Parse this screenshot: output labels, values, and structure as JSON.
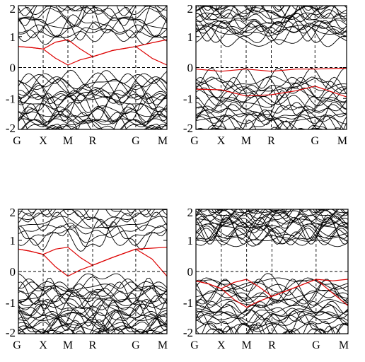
{
  "figure": {
    "panel_count": 4,
    "description_colors": {
      "band": "#000000",
      "highlight_band": "#dd0000",
      "frame": "#000000",
      "guide": "#000000"
    }
  },
  "chart_data": [
    {
      "type": "line",
      "panel": "top-left",
      "ylim": [
        -2,
        2
      ],
      "yticks": [
        "2",
        "1",
        "0",
        "-1",
        "-2"
      ],
      "kpoints": [
        "G",
        "X",
        "M",
        "R",
        "G",
        "M"
      ],
      "kpoint_positions": [
        0,
        0.5,
        1.0,
        1.5,
        2.37,
        3.0
      ],
      "zero_line": true,
      "highlight_series": [
        {
          "x": [
            0,
            0.25,
            0.5,
            0.75,
            1.0,
            1.25,
            1.5,
            1.9,
            2.37,
            2.7,
            3.0
          ],
          "y": [
            0.68,
            0.65,
            0.6,
            0.82,
            0.9,
            0.6,
            0.35,
            0.55,
            0.68,
            0.8,
            0.9
          ]
        },
        {
          "x": [
            0,
            0.25,
            0.5,
            0.75,
            1.0,
            1.25,
            1.5,
            1.9,
            2.37,
            2.7,
            3.0
          ],
          "y": [
            0.68,
            0.65,
            0.6,
            0.3,
            0.08,
            0.25,
            0.35,
            0.55,
            0.68,
            0.3,
            0.08
          ]
        }
      ],
      "band_seed": 11,
      "valence_bands": 26,
      "conduction_bands": 14
    },
    {
      "type": "line",
      "panel": "top-right",
      "ylim": [
        -2,
        2
      ],
      "yticks": [
        "2",
        "1",
        "0",
        "-1",
        "-2"
      ],
      "kpoints": [
        "G",
        "X",
        "M",
        "R",
        "G",
        "M"
      ],
      "kpoint_positions": [
        0,
        0.5,
        1.0,
        1.5,
        2.37,
        3.0
      ],
      "zero_line": true,
      "highlight_series": [
        {
          "x": [
            0,
            0.5,
            1.0,
            1.5,
            2.0,
            2.37,
            3.0
          ],
          "y": [
            -0.05,
            -0.12,
            -0.05,
            -0.12,
            -0.05,
            -0.05,
            -0.02
          ]
        },
        {
          "x": [
            0,
            0.5,
            1.0,
            1.5,
            2.0,
            2.37,
            3.0
          ],
          "y": [
            -0.7,
            -0.72,
            -0.92,
            -0.88,
            -0.75,
            -0.6,
            -0.95
          ]
        }
      ],
      "band_seed": 23,
      "valence_bands": 24,
      "conduction_bands": 22
    },
    {
      "type": "line",
      "panel": "bottom-left",
      "ylim": [
        -2,
        2
      ],
      "yticks": [
        "2",
        "1",
        "0",
        "-1",
        "-2"
      ],
      "kpoints": [
        "G",
        "X",
        "M",
        "R",
        "G",
        "M"
      ],
      "kpoint_positions": [
        0,
        0.5,
        1.0,
        1.5,
        2.37,
        3.0
      ],
      "zero_line": true,
      "highlight_series": [
        {
          "x": [
            0,
            0.25,
            0.5,
            0.75,
            1.0,
            1.25,
            1.5,
            1.9,
            2.37,
            2.7,
            3.0
          ],
          "y": [
            0.72,
            0.65,
            0.55,
            0.72,
            0.78,
            0.45,
            0.2,
            0.45,
            0.72,
            0.75,
            0.78
          ]
        },
        {
          "x": [
            0,
            0.25,
            0.5,
            0.75,
            1.0,
            1.25,
            1.5,
            1.9,
            2.37,
            2.7,
            3.0
          ],
          "y": [
            0.72,
            0.65,
            0.55,
            0.15,
            -0.15,
            0.05,
            0.2,
            0.45,
            0.72,
            0.4,
            -0.15
          ]
        }
      ],
      "band_seed": 37,
      "valence_bands": 30,
      "conduction_bands": 12
    },
    {
      "type": "line",
      "panel": "bottom-right",
      "ylim": [
        -2,
        2
      ],
      "yticks": [
        "2",
        "1",
        "0",
        "-1",
        "-2"
      ],
      "kpoints": [
        "G",
        "X",
        "M",
        "R",
        "G",
        "M"
      ],
      "kpoint_positions": [
        0,
        0.5,
        1.0,
        1.5,
        2.37,
        3.0
      ],
      "zero_line": true,
      "highlight_series": [
        {
          "x": [
            0,
            0.25,
            0.5,
            0.75,
            1.0,
            1.25,
            1.5,
            1.9,
            2.37,
            2.7,
            3.0
          ],
          "y": [
            -0.3,
            -0.4,
            -0.55,
            -0.35,
            -0.25,
            -0.5,
            -0.8,
            -0.55,
            -0.25,
            -0.3,
            -0.25
          ]
        },
        {
          "x": [
            0,
            0.25,
            0.5,
            0.75,
            1.0,
            1.25,
            1.5,
            1.9,
            2.37,
            2.7,
            3.0
          ],
          "y": [
            -0.3,
            -0.4,
            -0.55,
            -0.9,
            -1.15,
            -0.95,
            -0.8,
            -0.55,
            -0.25,
            -0.7,
            -1.1
          ]
        }
      ],
      "band_seed": 53,
      "valence_bands": 26,
      "conduction_bands": 26
    }
  ]
}
